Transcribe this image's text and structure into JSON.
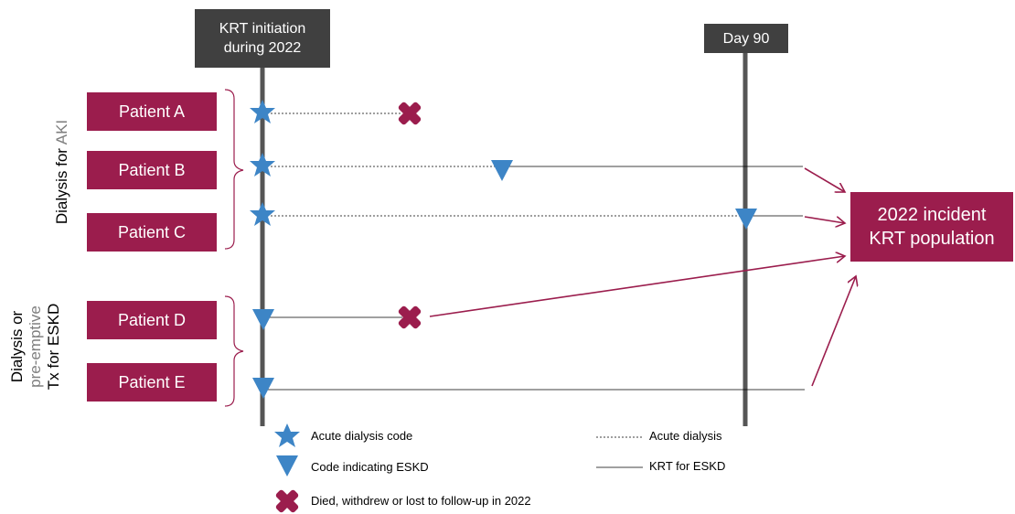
{
  "headers": {
    "krt_line1": "KRT initiation",
    "krt_line2": "during 2022",
    "day90": "Day 90"
  },
  "patients": [
    "Patient A",
    "Patient B",
    "Patient C",
    "Patient D",
    "Patient E"
  ],
  "groups": {
    "aki": {
      "prefix": "Dialysis for",
      "suffix": "AKI"
    },
    "eskd": {
      "line1": "Dialysis or",
      "line2": "pre-emptive",
      "line3": "Tx for ESKD"
    }
  },
  "target": {
    "line1": "2022 incident",
    "line2": "KRT population"
  },
  "legend": {
    "star": "Acute dialysis code",
    "triangle": "Code indicating ESKD",
    "cross": "Died, withdrew or lost to follow-up in 2022",
    "dashed": "Acute dialysis",
    "solid": "KRT for ESKD"
  },
  "colors": {
    "brand": "#9b1d4d",
    "header": "#404040",
    "marker": "#3d85c6",
    "timeline": "#555555"
  }
}
